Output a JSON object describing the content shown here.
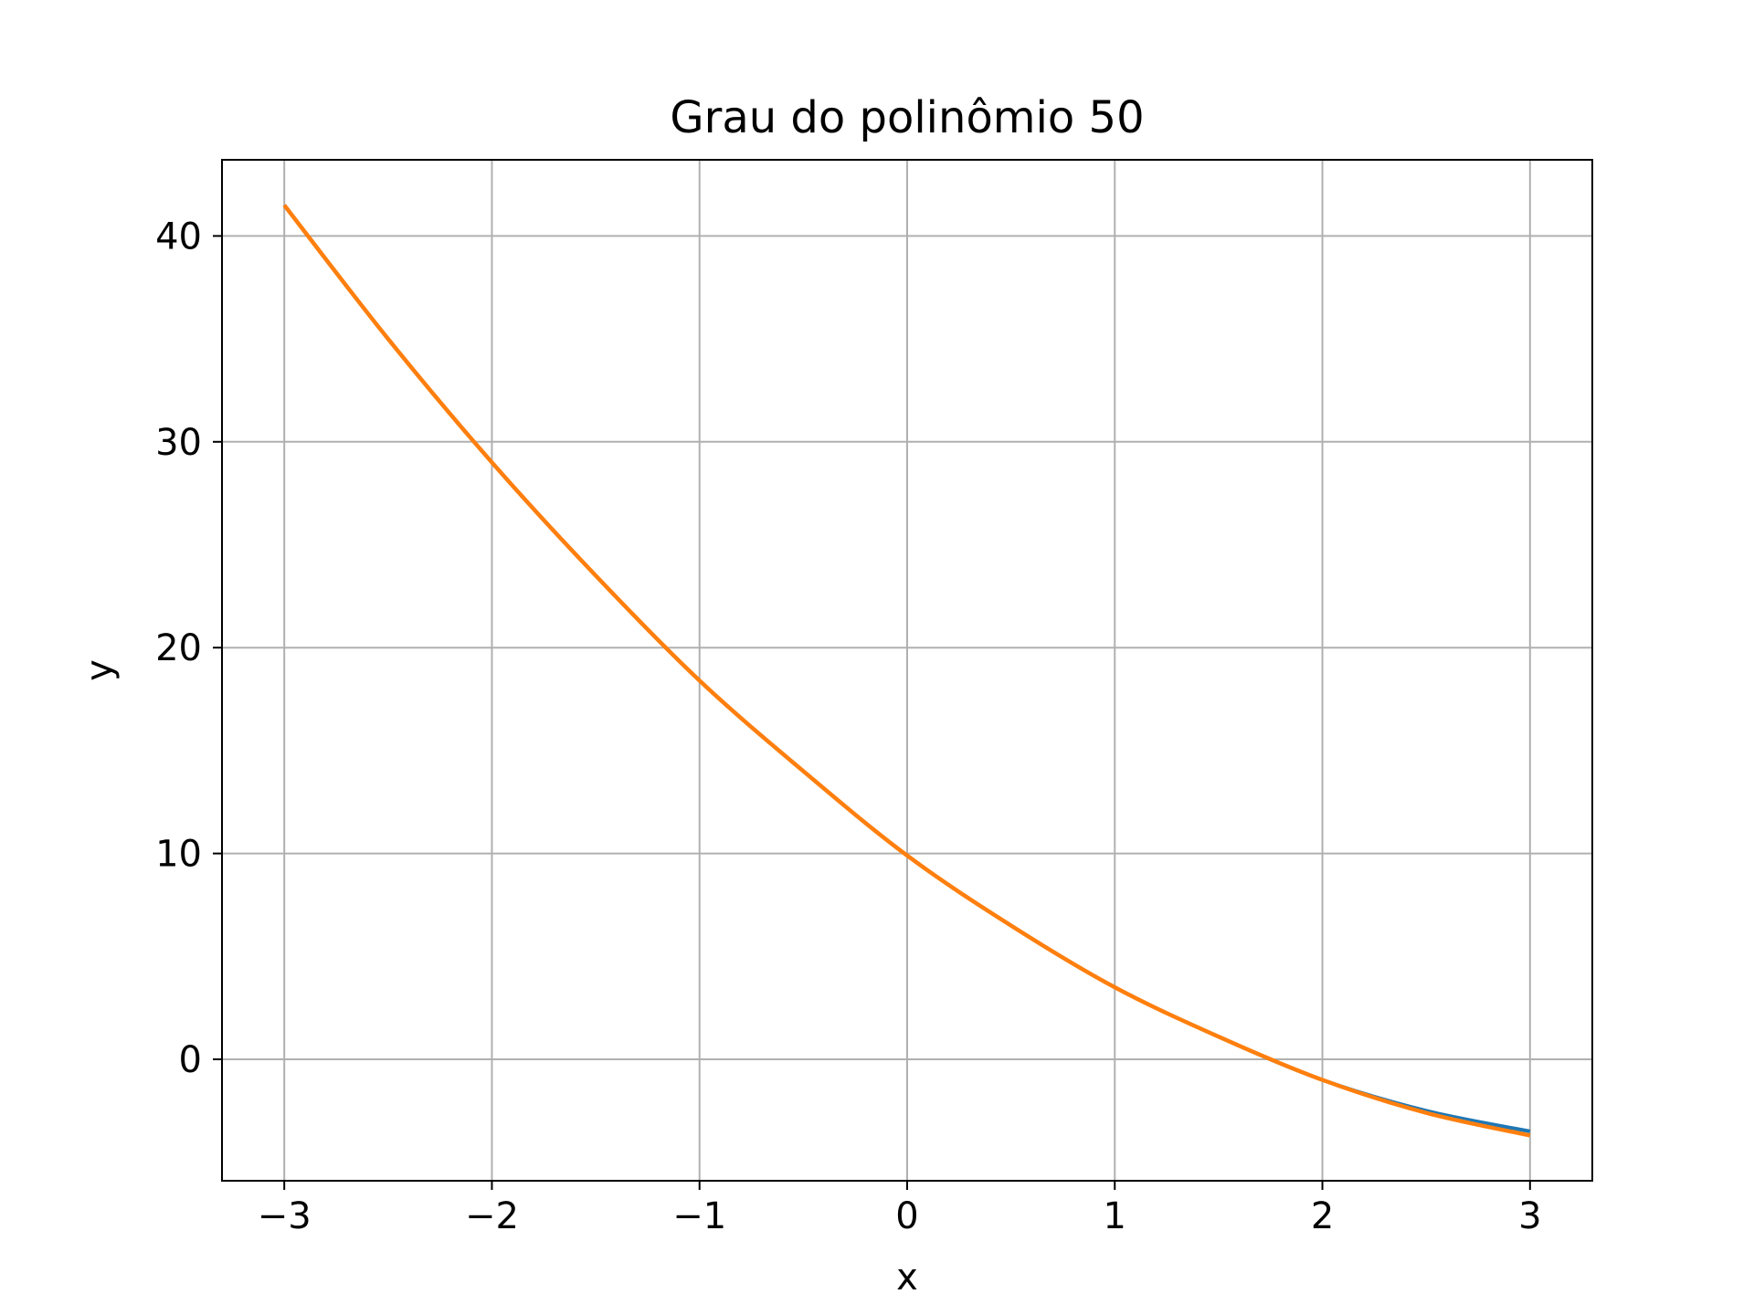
{
  "chart_data": {
    "type": "line",
    "title": "Grau do polinômio 50",
    "xlabel": "x",
    "ylabel": "y",
    "xlim": [
      -3.3,
      3.3
    ],
    "ylim": [
      -5.9,
      43.7
    ],
    "xticks": [
      -3,
      -2,
      -1,
      0,
      1,
      2,
      3
    ],
    "xtick_labels": [
      "−3",
      "−2",
      "−1",
      "0",
      "1",
      "2",
      "3"
    ],
    "yticks": [
      0,
      10,
      20,
      30,
      40
    ],
    "ytick_labels": [
      "0",
      "10",
      "20",
      "30",
      "40"
    ],
    "grid": true,
    "legend": "none",
    "series": [
      {
        "color": "#1f77b4",
        "x": [
          -3.0,
          -2.5,
          -2.0,
          -1.5,
          -1.0,
          -0.5,
          0.0,
          0.5,
          1.0,
          1.5,
          2.0,
          2.5,
          3.0
        ],
        "y": [
          41.5,
          35.0,
          29.0,
          23.5,
          18.4,
          14.0,
          9.9,
          6.5,
          3.5,
          1.1,
          -1.0,
          -2.5,
          -3.5
        ]
      },
      {
        "color": "#ff7f0e",
        "x": [
          -3.0,
          -2.5,
          -2.0,
          -1.5,
          -1.0,
          -0.5,
          0.0,
          0.5,
          1.0,
          1.5,
          2.0,
          2.5,
          3.0
        ],
        "y": [
          41.5,
          35.0,
          29.0,
          23.5,
          18.4,
          14.0,
          9.9,
          6.5,
          3.5,
          1.1,
          -1.0,
          -2.6,
          -3.7
        ]
      }
    ]
  }
}
